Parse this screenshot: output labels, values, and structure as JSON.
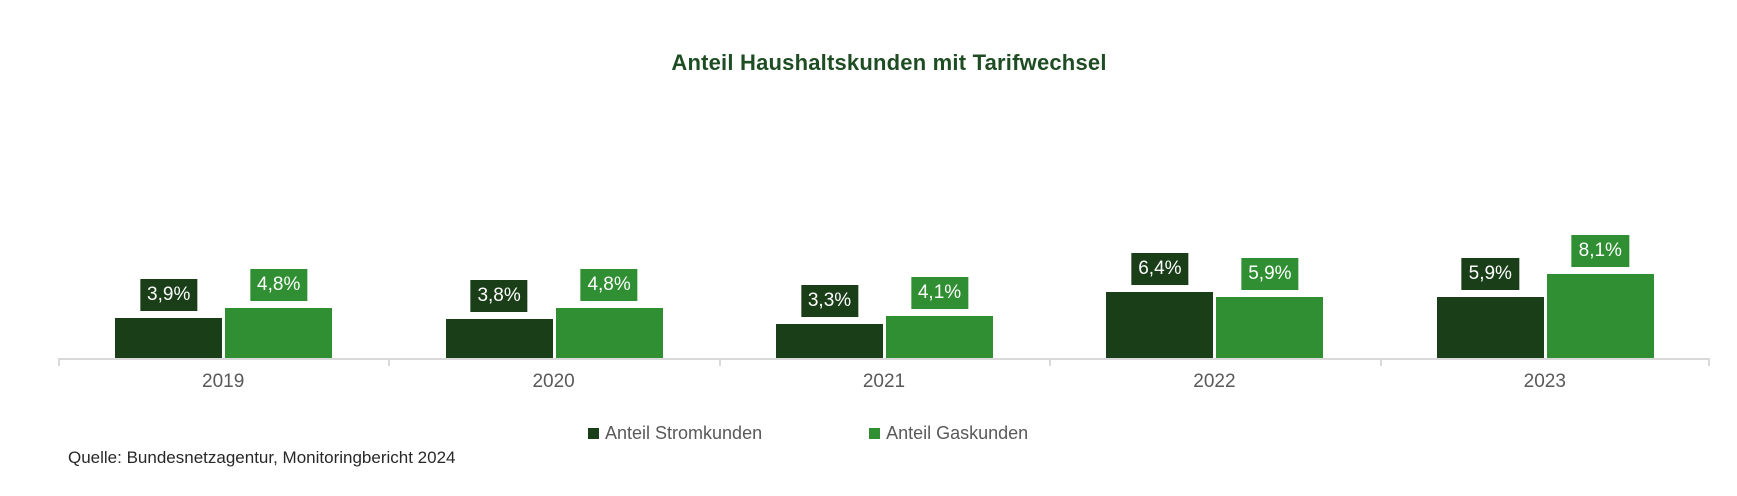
{
  "source_note": "Quelle: Bundesnetzagentur, Monitoringbericht 2024",
  "colors": {
    "background": "#ffffff",
    "title_text": "#1e4d23",
    "axis_line": "#d9d9d9",
    "axis_text": "#595959",
    "legend_text": "#595959",
    "source_text": "#282828",
    "value_label_text": "#ffffff"
  },
  "chart_data": {
    "type": "bar",
    "title": "Anteil Haushaltskunden mit Tarifwechsel",
    "categories": [
      "2019",
      "2020",
      "2021",
      "2022",
      "2023"
    ],
    "series": [
      {
        "name": "Anteil Stromkunden",
        "color": "#193e18",
        "values": [
          3.9,
          3.8,
          3.3,
          6.4,
          5.9
        ],
        "labels": [
          "3,9%",
          "3,8%",
          "3,3%",
          "6,4%",
          "5,9%"
        ]
      },
      {
        "name": "Anteil Gaskunden",
        "color": "#2f8f32",
        "values": [
          4.8,
          4.8,
          4.1,
          5.9,
          8.1
        ],
        "labels": [
          "4,8%",
          "4,8%",
          "4,1%",
          "5,9%",
          "8,1%"
        ]
      }
    ],
    "xlabel": "",
    "ylabel": "",
    "ylim": [
      0,
      10
    ],
    "grid": false,
    "axis_visible": "x-only",
    "legend_position": "bottom",
    "value_suffix": "%",
    "decimal_separator": ","
  }
}
